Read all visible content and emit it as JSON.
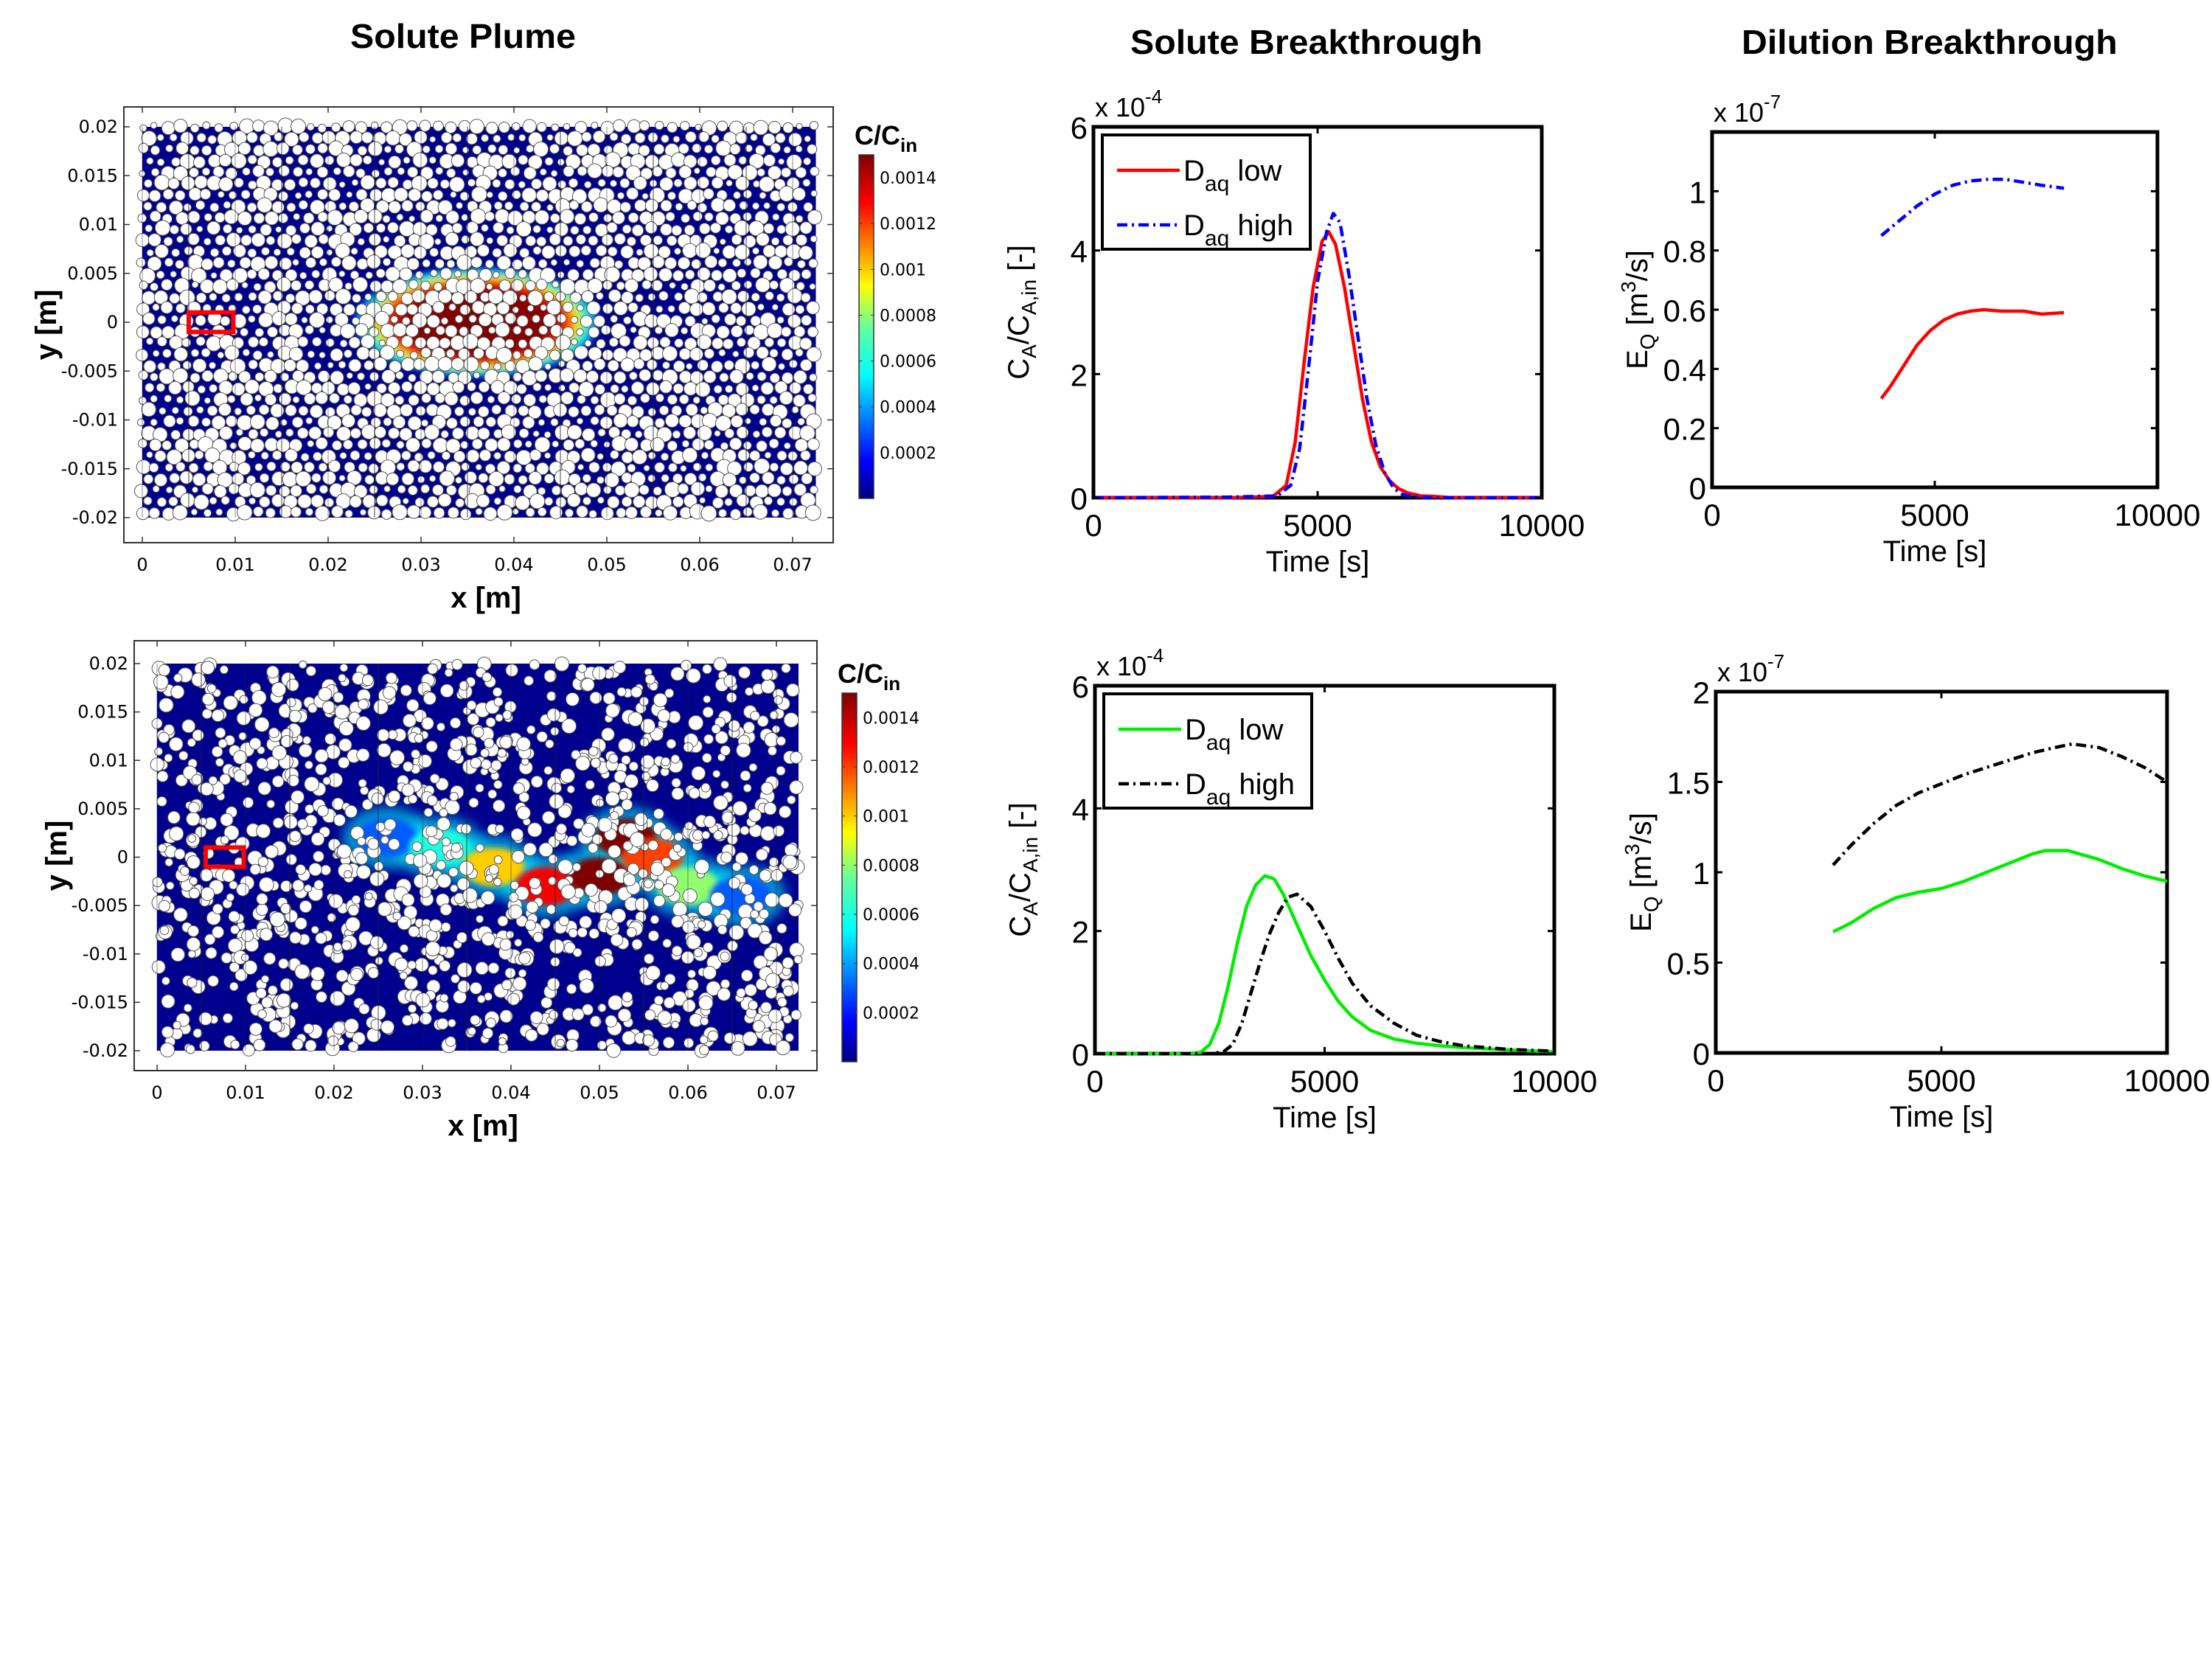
{
  "column_titles": {
    "plume": "Solute Plume",
    "solute_breakthrough": "Solute Breakthrough",
    "dilution_breakthrough": "Dilution Breakthrough"
  },
  "colors": {
    "pore_fluid": "#00008f",
    "grain": "#ffffff",
    "marker_box": "#ff0000",
    "red": "#ff0000",
    "blue": "#0000ff",
    "green": "#00ee00",
    "black": "#000000"
  },
  "chart_data": [
    {
      "id": "plume-top",
      "type": "heatmap",
      "title": "",
      "xlabel": "x [m]",
      "ylabel": "y [m]",
      "xlim": [
        0,
        0.0725
      ],
      "ylim": [
        -0.02,
        0.02
      ],
      "xticks": [
        "0",
        "0.01",
        "0.02",
        "0.03",
        "0.04",
        "0.05",
        "0.06",
        "0.07"
      ],
      "xtick_values": [
        0,
        0.01,
        0.02,
        0.03,
        0.04,
        0.05,
        0.06,
        0.07
      ],
      "yticks": [
        "0.02",
        "0.015",
        "0.01",
        "0.005",
        "0",
        "-0.005",
        "-0.01",
        "-0.015",
        "-0.02"
      ],
      "ytick_values": [
        0.02,
        0.015,
        0.01,
        0.005,
        0,
        -0.005,
        -0.01,
        -0.015,
        -0.02
      ],
      "colorbar": {
        "label": "C/C",
        "label_sub": "in",
        "range": [
          0,
          0.0015
        ],
        "ticks": [
          "0.0014",
          "0.0012",
          "0.001",
          "0.0008",
          "0.0006",
          "0.0004",
          "0.0002"
        ],
        "tick_values": [
          0.0014,
          0.0012,
          0.001,
          0.0008,
          0.0006,
          0.0004,
          0.0002
        ],
        "colormap": "jet"
      },
      "media": "ordered grains (homogeneous packing)",
      "plume": {
        "center": [
          0.036,
          0.0
        ],
        "half_length": 0.011,
        "half_width": 0.0045,
        "peak": 0.0015
      },
      "marker_box": {
        "x": [
          0.005,
          0.0098
        ],
        "y": [
          -0.001,
          0.001
        ]
      }
    },
    {
      "id": "plume-bottom",
      "type": "heatmap",
      "title": "",
      "xlabel": "x [m]",
      "ylabel": "y [m]",
      "xlim": [
        0,
        0.0725
      ],
      "ylim": [
        -0.02,
        0.02
      ],
      "xticks": [
        "0",
        "0.01",
        "0.02",
        "0.03",
        "0.04",
        "0.05",
        "0.06",
        "0.07"
      ],
      "xtick_values": [
        0,
        0.01,
        0.02,
        0.03,
        0.04,
        0.05,
        0.06,
        0.07
      ],
      "yticks": [
        "0.02",
        "0.015",
        "0.01",
        "0.005",
        "0",
        "-0.005",
        "-0.01",
        "-0.015",
        "-0.02"
      ],
      "ytick_values": [
        0.02,
        0.015,
        0.01,
        0.005,
        0,
        -0.005,
        -0.01,
        -0.015,
        -0.02
      ],
      "colorbar": {
        "label": "C/C",
        "label_sub": "in",
        "range": [
          0,
          0.0015
        ],
        "ticks": [
          "0.0014",
          "0.0012",
          "0.001",
          "0.0008",
          "0.0006",
          "0.0004",
          "0.0002"
        ],
        "tick_values": [
          0.0014,
          0.0012,
          0.001,
          0.0008,
          0.0006,
          0.0004,
          0.0002
        ],
        "colormap": "jet"
      },
      "media": "heterogeneous grains (clustered)",
      "plume_path": [
        [
          0.026,
          0.002,
          0.0003
        ],
        [
          0.032,
          0.001,
          0.0006
        ],
        [
          0.038,
          -0.001,
          0.001
        ],
        [
          0.044,
          -0.003,
          0.0013
        ],
        [
          0.05,
          -0.002,
          0.0015
        ],
        [
          0.053,
          0.002,
          0.0015
        ],
        [
          0.056,
          0.0,
          0.0012
        ],
        [
          0.06,
          -0.003,
          0.0008
        ],
        [
          0.066,
          -0.004,
          0.0003
        ]
      ],
      "marker_box": {
        "x": [
          0.0055,
          0.0098
        ],
        "y": [
          -0.001,
          0.001
        ]
      }
    },
    {
      "id": "solute-breakthrough-top",
      "type": "line",
      "title": "",
      "xlabel": "Time [s]",
      "ylabel_main": "C",
      "ylabel_sub1": "A",
      "ylabel_mid": "/C",
      "ylabel_sub2": "A,in",
      "ylabel_tail": " [-]",
      "y_multiplier": "x 10",
      "y_exponent": "-4",
      "xlim": [
        0,
        10000
      ],
      "ylim": [
        0,
        6
      ],
      "xticks": [
        "0",
        "5000",
        "10000"
      ],
      "xtick_values": [
        0,
        5000,
        10000
      ],
      "yticks": [
        "0",
        "2",
        "4",
        "6"
      ],
      "ytick_values": [
        0,
        2,
        4,
        6
      ],
      "grid": false,
      "legend": {
        "position": "top-left",
        "entries": [
          {
            "label_main": "D",
            "label_sub": "aq",
            "label_tail": " low",
            "color": "#ff0000",
            "dash": "solid"
          },
          {
            "label_main": "D",
            "label_sub": "aq",
            "label_tail": " high",
            "color": "#0000ff",
            "dash": "dashdot"
          }
        ]
      },
      "series": [
        {
          "name": "Daq low",
          "color": "#ff0000",
          "dash": "solid",
          "x": [
            0,
            3000,
            4000,
            4300,
            4500,
            4700,
            4900,
            5100,
            5250,
            5400,
            5600,
            5800,
            6000,
            6200,
            6400,
            6600,
            6800,
            7000,
            7300,
            7600,
            8000,
            10000
          ],
          "y": [
            0,
            0,
            0.02,
            0.2,
            0.9,
            2.2,
            3.4,
            4.15,
            4.3,
            4.1,
            3.4,
            2.5,
            1.6,
            0.9,
            0.5,
            0.28,
            0.15,
            0.08,
            0.03,
            0.02,
            0,
            0
          ]
        },
        {
          "name": "Daq high",
          "color": "#0000ff",
          "dash": "dashdot",
          "x": [
            0,
            3000,
            4100,
            4400,
            4600,
            4800,
            5000,
            5200,
            5350,
            5500,
            5700,
            5900,
            6100,
            6300,
            6500,
            6700,
            6900,
            7100,
            7500,
            10000
          ],
          "y": [
            0,
            0.01,
            0.03,
            0.2,
            0.8,
            2.1,
            3.5,
            4.3,
            4.6,
            4.45,
            3.6,
            2.6,
            1.6,
            0.85,
            0.4,
            0.15,
            0.05,
            0.02,
            0,
            0
          ]
        }
      ]
    },
    {
      "id": "dilution-breakthrough-top",
      "type": "line",
      "title": "",
      "xlabel": "Time [s]",
      "ylabel_main": "E",
      "ylabel_sub1": "Q",
      "ylabel_mid": " [m",
      "ylabel_sup": "3",
      "ylabel_tail": "/s]",
      "y_multiplier": "x 10",
      "y_exponent": "-7",
      "xlim": [
        0,
        10000
      ],
      "ylim": [
        0,
        1.2
      ],
      "xticks": [
        "0",
        "5000",
        "10000"
      ],
      "xtick_values": [
        0,
        5000,
        10000
      ],
      "yticks": [
        "0",
        "0.2",
        "0.4",
        "0.6",
        "0.8",
        "1"
      ],
      "ytick_values": [
        0,
        0.2,
        0.4,
        0.6,
        0.8,
        1.0
      ],
      "grid": false,
      "series": [
        {
          "name": "Daq high",
          "color": "#0000ff",
          "dash": "dashdot",
          "x": [
            3800,
            4200,
            4600,
            5000,
            5400,
            5800,
            6200,
            6600,
            7000,
            7400,
            7900
          ],
          "y": [
            0.85,
            0.9,
            0.95,
            0.99,
            1.02,
            1.035,
            1.04,
            1.04,
            1.03,
            1.02,
            1.01
          ]
        },
        {
          "name": "Daq low",
          "color": "#ff0000",
          "dash": "solid",
          "x": [
            3800,
            4000,
            4300,
            4600,
            4900,
            5200,
            5500,
            5800,
            6100,
            6500,
            7000,
            7400,
            7900
          ],
          "y": [
            0.3,
            0.34,
            0.41,
            0.48,
            0.53,
            0.565,
            0.585,
            0.595,
            0.6,
            0.595,
            0.595,
            0.585,
            0.59
          ]
        }
      ]
    },
    {
      "id": "solute-breakthrough-bottom",
      "type": "line",
      "title": "",
      "xlabel": "Time [s]",
      "ylabel_main": "C",
      "ylabel_sub1": "A",
      "ylabel_mid": "/C",
      "ylabel_sub2": "A,in",
      "ylabel_tail": " [-]",
      "y_multiplier": "x 10",
      "y_exponent": "-4",
      "xlim": [
        0,
        10000
      ],
      "ylim": [
        0,
        6
      ],
      "xticks": [
        "0",
        "5000",
        "10000"
      ],
      "xtick_values": [
        0,
        5000,
        10000
      ],
      "yticks": [
        "0",
        "2",
        "4",
        "6"
      ],
      "ytick_values": [
        0,
        2,
        4,
        6
      ],
      "grid": false,
      "legend": {
        "position": "top-left",
        "entries": [
          {
            "label_main": "D",
            "label_sub": "aq",
            "label_tail": " low",
            "color": "#00ee00",
            "dash": "solid"
          },
          {
            "label_main": "D",
            "label_sub": "aq",
            "label_tail": " high",
            "color": "#000000",
            "dash": "dashdot"
          }
        ]
      },
      "series": [
        {
          "name": "Daq low",
          "color": "#00ee00",
          "dash": "solid",
          "x": [
            0,
            2000,
            2300,
            2500,
            2700,
            2900,
            3100,
            3300,
            3500,
            3700,
            3900,
            4100,
            4400,
            4700,
            5000,
            5300,
            5600,
            6000,
            6500,
            7000,
            7500,
            8000,
            9000,
            10000
          ],
          "y": [
            0,
            0,
            0.02,
            0.15,
            0.5,
            1.1,
            1.8,
            2.4,
            2.75,
            2.9,
            2.85,
            2.6,
            2.1,
            1.6,
            1.2,
            0.85,
            0.6,
            0.38,
            0.24,
            0.17,
            0.13,
            0.1,
            0.06,
            0.03
          ]
        },
        {
          "name": "Daq high",
          "color": "#000000",
          "dash": "dashdot",
          "x": [
            0,
            2500,
            2800,
            3000,
            3200,
            3400,
            3600,
            3800,
            4000,
            4200,
            4400,
            4700,
            5000,
            5300,
            5600,
            6000,
            6500,
            7000,
            7500,
            8000,
            9000,
            10000
          ],
          "y": [
            0,
            0,
            0.03,
            0.15,
            0.5,
            1.0,
            1.5,
            1.95,
            2.3,
            2.55,
            2.6,
            2.4,
            2.0,
            1.55,
            1.15,
            0.78,
            0.5,
            0.3,
            0.2,
            0.13,
            0.07,
            0.04
          ]
        }
      ]
    },
    {
      "id": "dilution-breakthrough-bottom",
      "type": "line",
      "title": "",
      "xlabel": "Time [s]",
      "ylabel_main": "E",
      "ylabel_sub1": "Q",
      "ylabel_mid": " [m",
      "ylabel_sup": "3",
      "ylabel_tail": "/s]",
      "y_multiplier": "x 10",
      "y_exponent": "-7",
      "xlim": [
        0,
        10000
      ],
      "ylim": [
        0,
        2
      ],
      "xticks": [
        "0",
        "5000",
        "10000"
      ],
      "xtick_values": [
        0,
        5000,
        10000
      ],
      "yticks": [
        "0",
        "0.5",
        "1",
        "1.5",
        "2"
      ],
      "ytick_values": [
        0,
        0.5,
        1,
        1.5,
        2
      ],
      "grid": false,
      "series": [
        {
          "name": "Daq high",
          "color": "#000000",
          "dash": "dashdot",
          "x": [
            2600,
            3000,
            3500,
            4000,
            4500,
            5000,
            5500,
            6000,
            6500,
            7000,
            7500,
            7900,
            8500,
            9000,
            9500,
            10000
          ],
          "y": [
            1.04,
            1.15,
            1.27,
            1.37,
            1.44,
            1.49,
            1.54,
            1.58,
            1.62,
            1.66,
            1.69,
            1.71,
            1.69,
            1.64,
            1.58,
            1.5
          ]
        },
        {
          "name": "Daq low",
          "color": "#00ee00",
          "dash": "solid",
          "x": [
            2600,
            3000,
            3500,
            4000,
            4500,
            5000,
            5500,
            6000,
            6500,
            7000,
            7300,
            7800,
            8500,
            9000,
            9500,
            10000
          ],
          "y": [
            0.67,
            0.72,
            0.8,
            0.86,
            0.89,
            0.91,
            0.95,
            1.0,
            1.05,
            1.1,
            1.12,
            1.12,
            1.07,
            1.02,
            0.98,
            0.95
          ]
        }
      ]
    }
  ]
}
